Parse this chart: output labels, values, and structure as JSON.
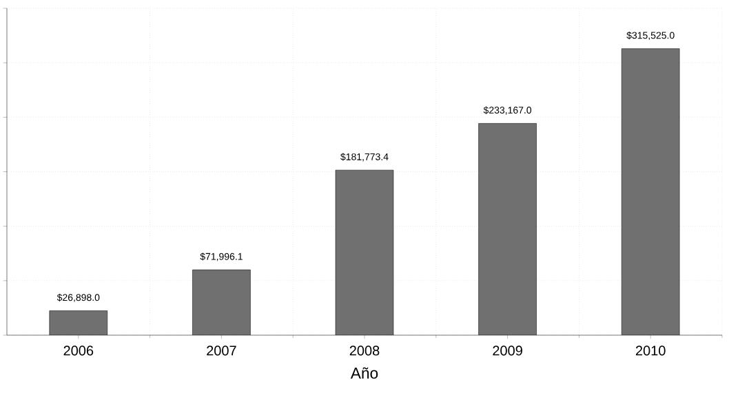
{
  "chart_data": {
    "type": "bar",
    "xlabel": "Año",
    "categories": [
      "2006",
      "2007",
      "2008",
      "2009",
      "2010"
    ],
    "values": [
      26898.0,
      71996.1,
      181773.4,
      233167.0,
      315525.0
    ],
    "value_labels": [
      "$26,898.0",
      "$71,996.1",
      "$181,773.4",
      "$233,167.0",
      "$315,525.0"
    ],
    "color": "#707070",
    "ylim": [
      0,
      360000
    ],
    "yticks": [
      {
        "value": 0,
        "label": null
      },
      {
        "value": 60000,
        "label": null
      },
      {
        "value": 120000,
        "label": null
      },
      {
        "value": 180000,
        "label": null
      },
      {
        "value": 240000,
        "label": null
      },
      {
        "value": 300000,
        "label": null
      },
      {
        "value": 360000,
        "label": null
      }
    ],
    "tick_labels": "x",
    "grid": true
  }
}
